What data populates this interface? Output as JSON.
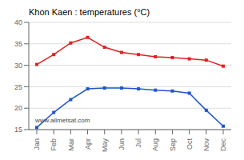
{
  "chart_data": {
    "type": "line",
    "title": "Khon Kaen : temperatures (°C)",
    "categories": [
      "Jan",
      "Feb",
      "Mar",
      "Apr",
      "May",
      "Jun",
      "Jul",
      "Aug",
      "Sep",
      "Oct",
      "Nov",
      "Dec"
    ],
    "series": [
      {
        "color": "#dd2222",
        "marker": "square",
        "values": [
          30.2,
          32.5,
          35.2,
          36.5,
          34.2,
          33.0,
          32.5,
          32.0,
          31.8,
          31.5,
          31.2,
          29.8
        ]
      },
      {
        "color": "#2255cc",
        "marker": "square",
        "values": [
          15.5,
          19.0,
          22.0,
          24.5,
          24.7,
          24.7,
          24.5,
          24.2,
          24.0,
          23.5,
          19.5,
          15.8
        ]
      }
    ],
    "ylim": [
      15,
      40
    ],
    "yticks": [
      15,
      20,
      25,
      30,
      35,
      40
    ],
    "grid": true,
    "annotations": [
      "www.allmetsat.com"
    ]
  }
}
